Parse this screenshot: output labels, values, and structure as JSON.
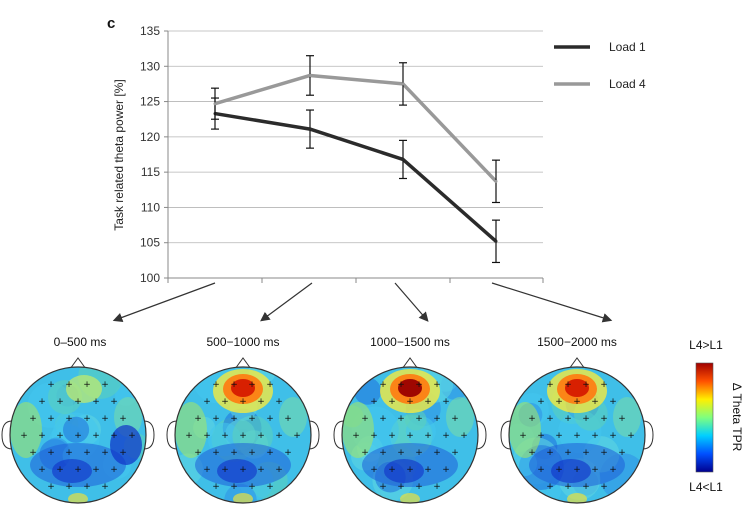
{
  "panel_label": "c",
  "chart_data": {
    "type": "line",
    "categories": [
      "0–500 ms",
      "500–1000 ms",
      "1000–1500 ms",
      "1500–2000 ms"
    ],
    "ylabel": "Task related theta power [%]",
    "xlabel": "",
    "ylim": [
      100,
      135
    ],
    "yticks": [
      100,
      105,
      110,
      115,
      120,
      125,
      130,
      135
    ],
    "grid": "horizontal",
    "legend_position": "right",
    "series": [
      {
        "name": "Load 1",
        "color": "#2b2b2b",
        "values": [
          123.3,
          121.1,
          116.8,
          105.2
        ],
        "error": [
          2.2,
          2.7,
          2.7,
          3.0
        ]
      },
      {
        "name": "Load 4",
        "color": "#999999",
        "values": [
          124.7,
          128.7,
          127.5,
          113.7
        ],
        "error": [
          2.2,
          2.8,
          3.0,
          3.0
        ]
      }
    ]
  },
  "topomaps": {
    "titles": [
      "0–500 ms",
      "500−1000 ms",
      "1000−1500 ms",
      "1500−2000 ms"
    ],
    "frontal_intensity": [
      0.05,
      0.85,
      1.0,
      0.9
    ]
  },
  "colorbar": {
    "top_label": "L4>L1",
    "bottom_label": "L4<L1",
    "title": "Δ Theta TPR",
    "colors": [
      "#00008f",
      "#0050ff",
      "#00cfff",
      "#7fff7f",
      "#ffef00",
      "#ff5000",
      "#a00000"
    ]
  }
}
